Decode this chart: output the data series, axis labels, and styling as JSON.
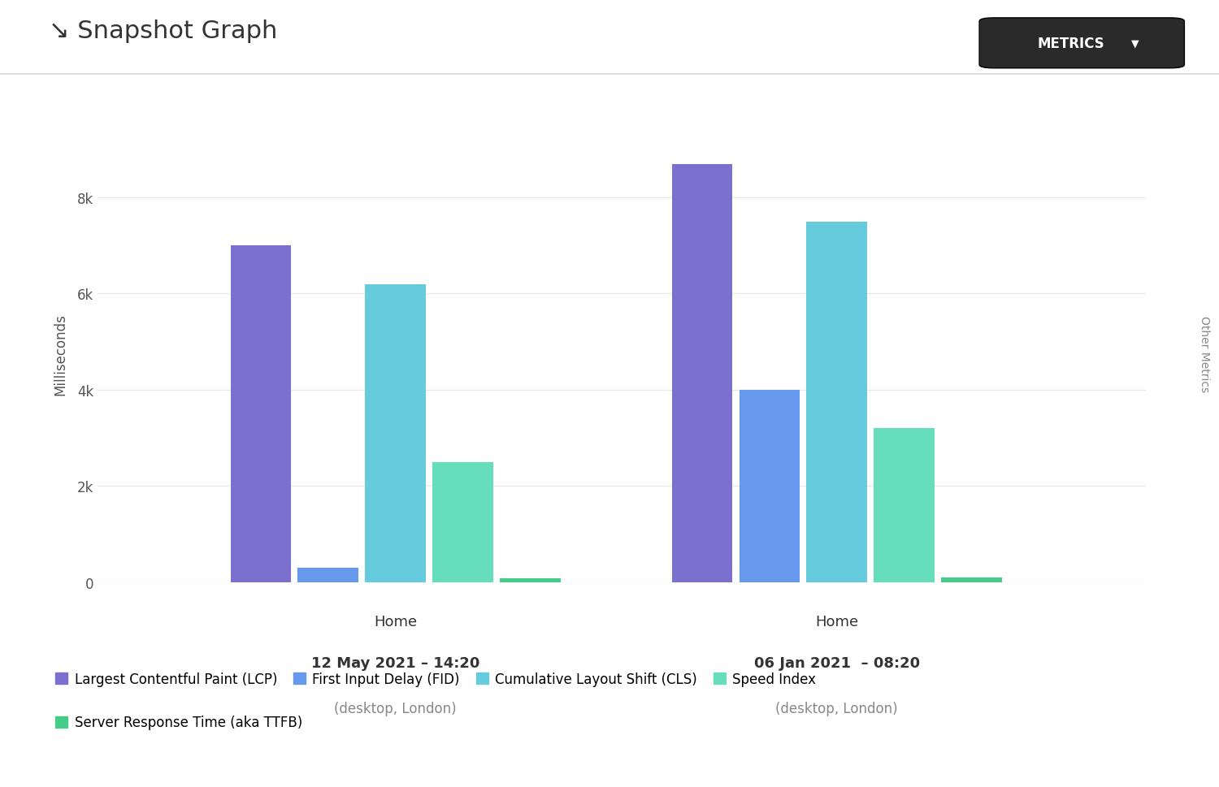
{
  "title": "Snapshot Graph",
  "ylabel": "Milliseconds",
  "right_label": "Other Metrics",
  "metrics_button_text": "METRICS",
  "groups": [
    {
      "line1": "Home",
      "line2": "12 May 2021 – 14:20",
      "line3": "(desktop, London)",
      "values": [
        7000,
        300,
        6200,
        2500,
        80
      ]
    },
    {
      "line1": "Home",
      "line2": "06 Jan 2021  – 08:20",
      "line3": "(desktop, London)",
      "values": [
        8700,
        4000,
        7500,
        3200,
        100
      ]
    }
  ],
  "legend_labels": [
    "Largest Contentful Paint (LCP)",
    "First Input Delay (FID)",
    "Cumulative Layout Shift (CLS)",
    "Speed Index",
    "Server Response Time (aka TTFB)"
  ],
  "colors": [
    "#7b6fd0",
    "#6699ee",
    "#66ccdd",
    "#66ddbb",
    "#44cc88"
  ],
  "ylim": [
    0,
    9500
  ],
  "yticks": [
    0,
    2000,
    4000,
    6000,
    8000
  ],
  "ytick_labels": [
    "0",
    "2k",
    "4k",
    "6k",
    "8k"
  ],
  "bg_color": "#ffffff",
  "grid_color": "#e8e8e8",
  "title_fontsize": 22,
  "ylabel_fontsize": 12,
  "tick_fontsize": 12,
  "legend_fontsize": 12,
  "label_fontsize": 13,
  "separator_color": "#dddddd",
  "text_dark": "#333333",
  "text_mid": "#555555",
  "text_light": "#888888",
  "button_bg": "#2a2a2a",
  "group_centers": [
    0.32,
    0.72
  ],
  "bar_width": 0.055,
  "xlim": [
    0.05,
    1.0
  ]
}
